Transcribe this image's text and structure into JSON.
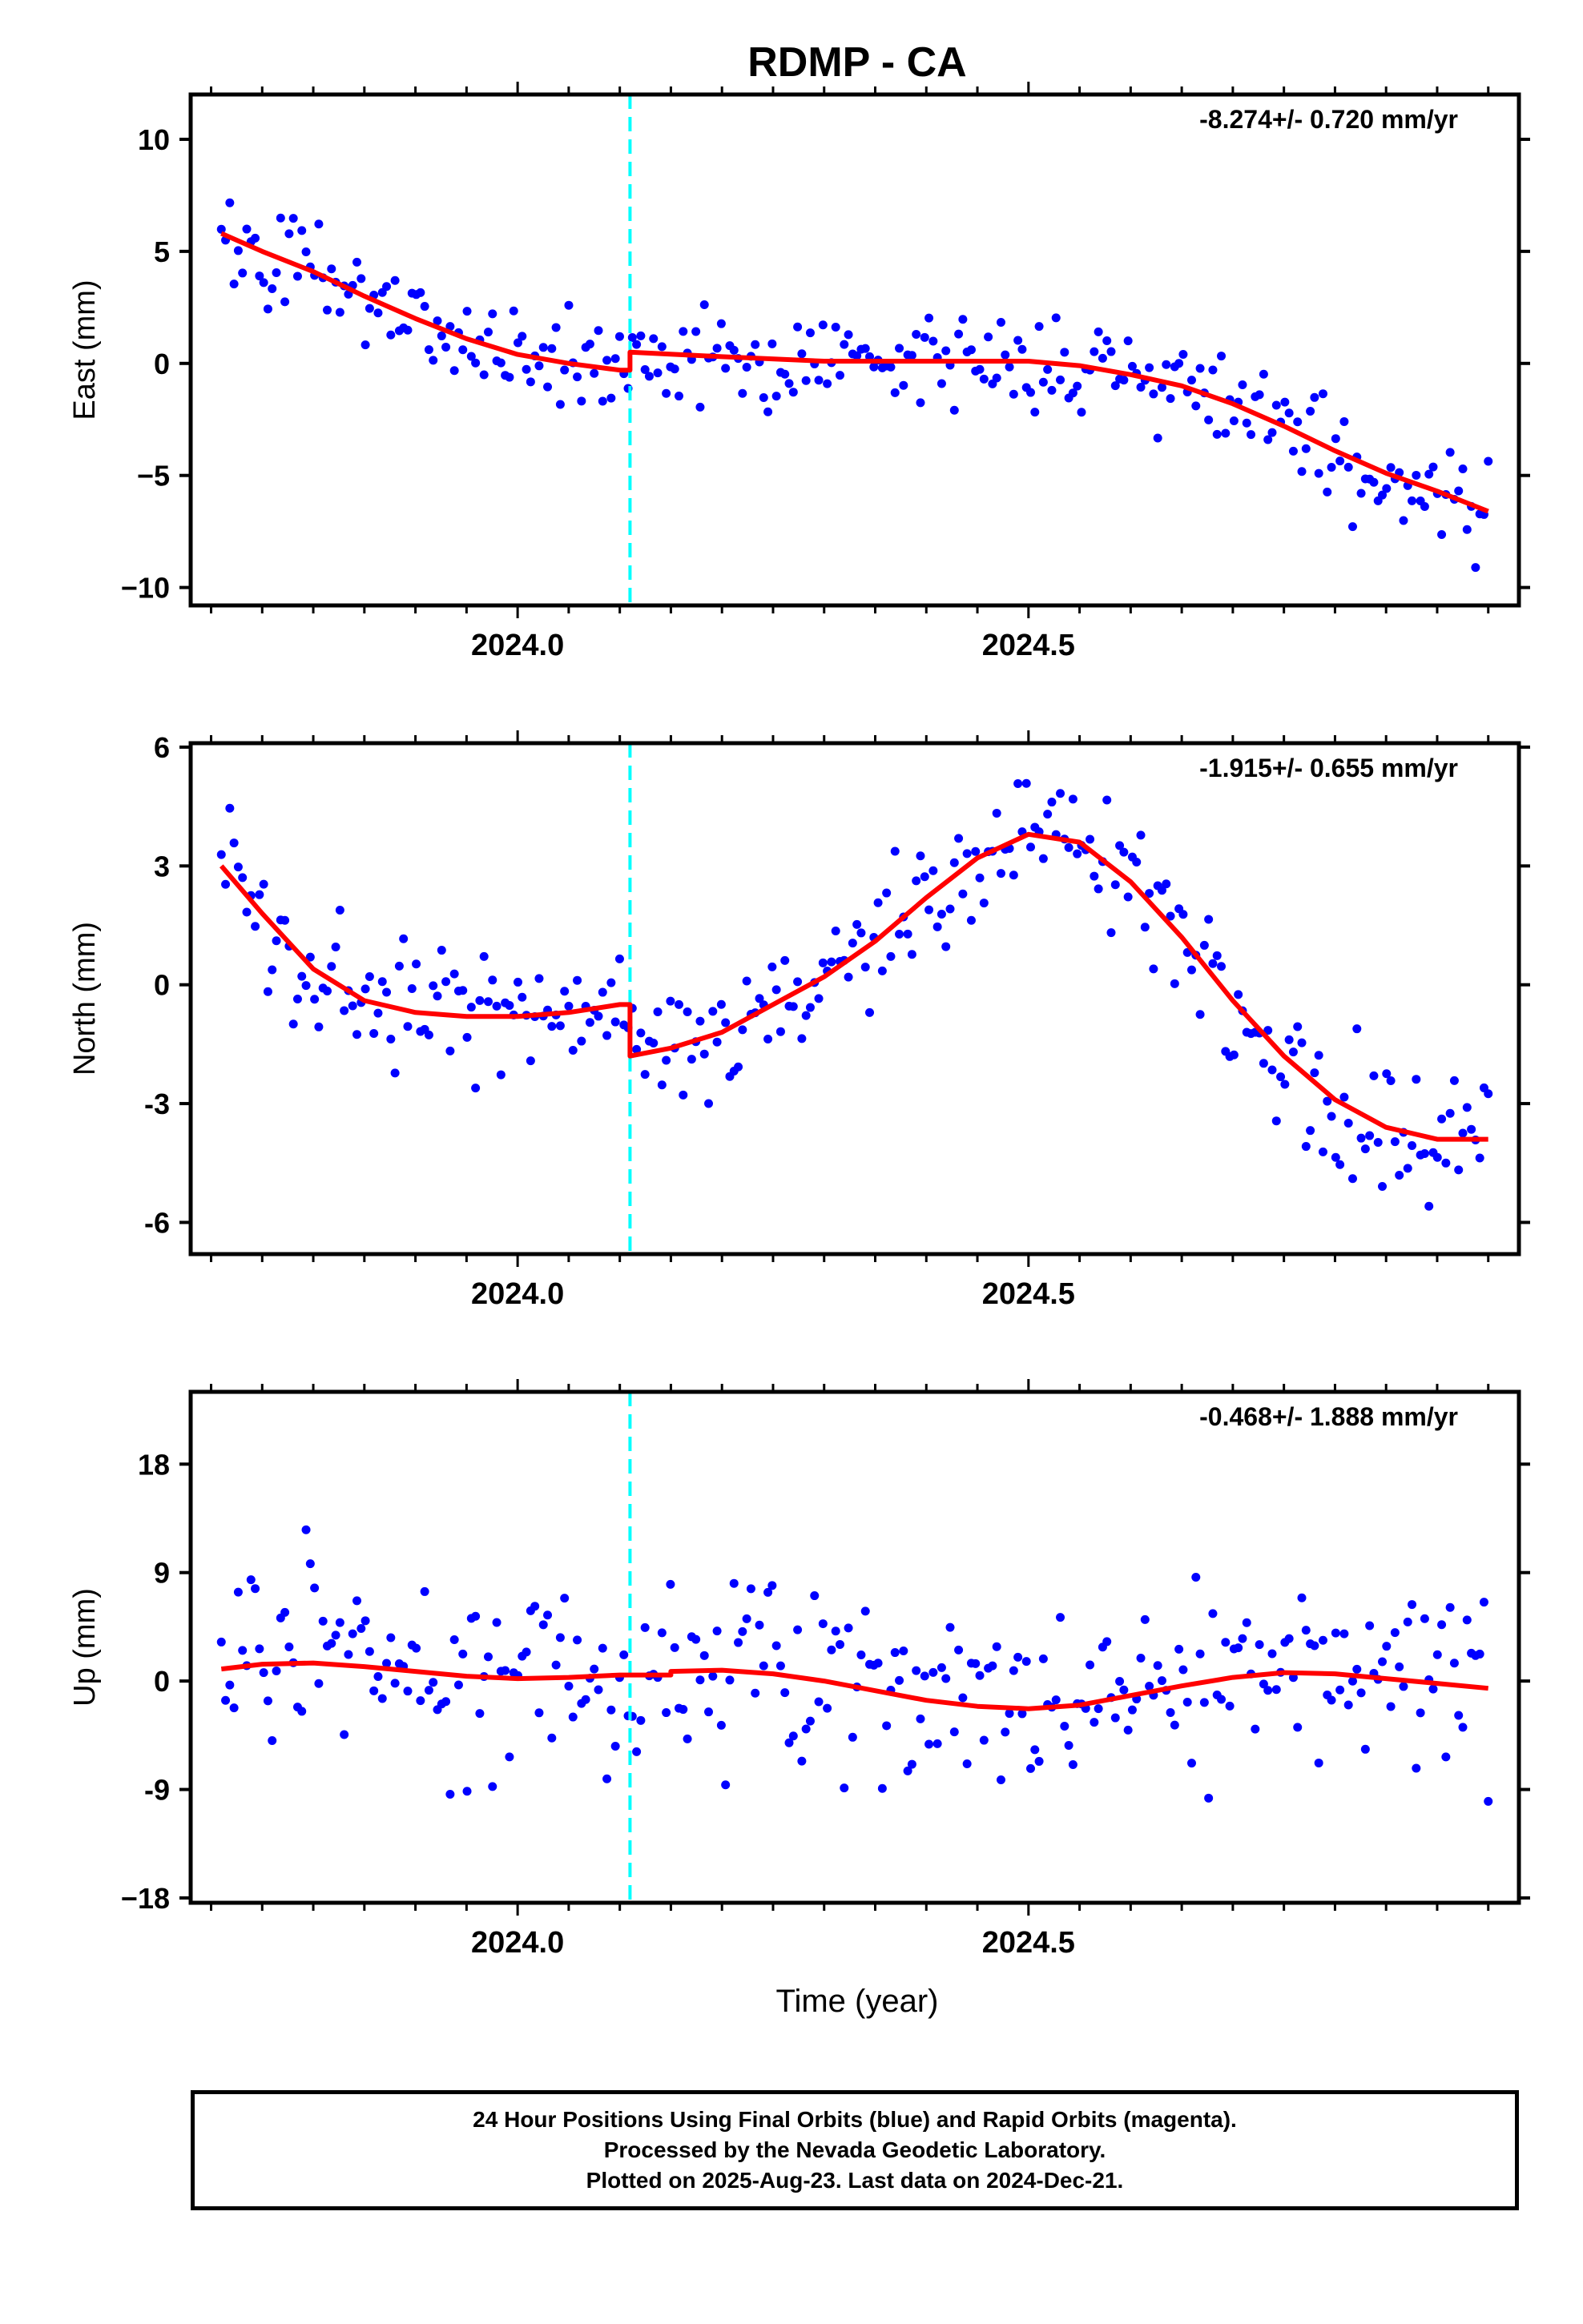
{
  "title": "RDMP - CA",
  "xlabel": "Time (year)",
  "offset_epoch": 2024.11,
  "colors": {
    "final_orbit_points": "#0000ff",
    "rapid_orbit_points": "#ff00ff",
    "model_fit": "#ff0000",
    "offset_marker": "#00ffff",
    "frame": "#000000"
  },
  "footer": {
    "line1": "24 Hour Positions Using Final Orbits (blue) and Rapid Orbits (magenta).",
    "line2": "Processed by the Nevada Geodetic Laboratory.",
    "line3": "Plotted on 2025-Aug-23. Last data on 2024-Dec-21."
  },
  "chart_data": [
    {
      "type": "scatter",
      "component": "East",
      "ylabel": "East (mm)",
      "rate_label": "-8.274+/- 0.720 mm/yr",
      "xlim": [
        2023.68,
        2024.98
      ],
      "ylim": [
        -10.8,
        12
      ],
      "yticks": [
        10,
        5,
        0,
        -5,
        -10
      ],
      "ytick_labels": [
        "10",
        "5",
        "0",
        "−5",
        "−10"
      ],
      "xticks": [
        2024.0,
        2024.5
      ],
      "xtick_labels": [
        "2024.0",
        "2024.5"
      ],
      "grid": false,
      "fit": [
        {
          "x": 2023.71,
          "y": 5.8
        },
        {
          "x": 2023.75,
          "y": 5.0
        },
        {
          "x": 2023.8,
          "y": 4.1
        },
        {
          "x": 2023.85,
          "y": 3.0
        },
        {
          "x": 2023.9,
          "y": 2.0
        },
        {
          "x": 2023.95,
          "y": 1.1
        },
        {
          "x": 2024.0,
          "y": 0.4
        },
        {
          "x": 2024.05,
          "y": 0.0
        },
        {
          "x": 2024.1,
          "y": -0.3
        },
        {
          "x": 2024.11,
          "y": 0.5
        },
        {
          "x": 2024.2,
          "y": 0.3
        },
        {
          "x": 2024.3,
          "y": 0.1
        },
        {
          "x": 2024.4,
          "y": 0.1
        },
        {
          "x": 2024.5,
          "y": 0.1
        },
        {
          "x": 2024.55,
          "y": -0.1
        },
        {
          "x": 2024.6,
          "y": -0.5
        },
        {
          "x": 2024.65,
          "y": -1.0
        },
        {
          "x": 2024.7,
          "y": -1.8
        },
        {
          "x": 2024.75,
          "y": -2.8
        },
        {
          "x": 2024.8,
          "y": -3.9
        },
        {
          "x": 2024.85,
          "y": -4.9
        },
        {
          "x": 2024.9,
          "y": -5.7
        },
        {
          "x": 2024.95,
          "y": -6.6
        }
      ]
    },
    {
      "type": "scatter",
      "component": "North",
      "ylabel": "North (mm)",
      "rate_label": "-1.915+/- 0.655 mm/yr",
      "xlim": [
        2023.68,
        2024.98
      ],
      "ylim": [
        -6.8,
        6.1
      ],
      "yticks": [
        6,
        3,
        0,
        -3,
        -6
      ],
      "ytick_labels": [
        "6",
        "3",
        "0",
        "-3",
        "-6"
      ],
      "xticks": [
        2024.0,
        2024.5
      ],
      "xtick_labels": [
        "2024.0",
        "2024.5"
      ],
      "grid": false,
      "fit": [
        {
          "x": 2023.71,
          "y": 3.0
        },
        {
          "x": 2023.75,
          "y": 1.8
        },
        {
          "x": 2023.8,
          "y": 0.4
        },
        {
          "x": 2023.85,
          "y": -0.4
        },
        {
          "x": 2023.9,
          "y": -0.7
        },
        {
          "x": 2023.95,
          "y": -0.8
        },
        {
          "x": 2024.0,
          "y": -0.8
        },
        {
          "x": 2024.05,
          "y": -0.7
        },
        {
          "x": 2024.1,
          "y": -0.5
        },
        {
          "x": 2024.11,
          "y": -1.8
        },
        {
          "x": 2024.15,
          "y": -1.6
        },
        {
          "x": 2024.2,
          "y": -1.2
        },
        {
          "x": 2024.25,
          "y": -0.5
        },
        {
          "x": 2024.3,
          "y": 0.2
        },
        {
          "x": 2024.35,
          "y": 1.1
        },
        {
          "x": 2024.4,
          "y": 2.2
        },
        {
          "x": 2024.45,
          "y": 3.2
        },
        {
          "x": 2024.5,
          "y": 3.8
        },
        {
          "x": 2024.55,
          "y": 3.6
        },
        {
          "x": 2024.6,
          "y": 2.6
        },
        {
          "x": 2024.65,
          "y": 1.2
        },
        {
          "x": 2024.7,
          "y": -0.4
        },
        {
          "x": 2024.75,
          "y": -1.8
        },
        {
          "x": 2024.8,
          "y": -2.9
        },
        {
          "x": 2024.85,
          "y": -3.6
        },
        {
          "x": 2024.9,
          "y": -3.9
        },
        {
          "x": 2024.95,
          "y": -3.9
        }
      ]
    },
    {
      "type": "scatter",
      "component": "Up",
      "ylabel": "Up (mm)",
      "rate_label": "-0.468+/- 1.888 mm/yr",
      "xlim": [
        2023.68,
        2024.98
      ],
      "ylim": [
        -18.4,
        24
      ],
      "yticks": [
        18,
        9,
        0,
        -9,
        -18
      ],
      "ytick_labels": [
        "18",
        "9",
        "0",
        "-9",
        "−18"
      ],
      "xticks": [
        2024.0,
        2024.5
      ],
      "xtick_labels": [
        "2024.0",
        "2024.5"
      ],
      "grid": false,
      "fit": [
        {
          "x": 2023.71,
          "y": 1.0
        },
        {
          "x": 2023.75,
          "y": 1.4
        },
        {
          "x": 2023.8,
          "y": 1.5
        },
        {
          "x": 2023.85,
          "y": 1.2
        },
        {
          "x": 2023.9,
          "y": 0.8
        },
        {
          "x": 2023.95,
          "y": 0.4
        },
        {
          "x": 2024.0,
          "y": 0.2
        },
        {
          "x": 2024.05,
          "y": 0.3
        },
        {
          "x": 2024.1,
          "y": 0.5
        },
        {
          "x": 2024.15,
          "y": 0.8
        },
        {
          "x": 2024.2,
          "y": 0.9
        },
        {
          "x": 2024.25,
          "y": 0.6
        },
        {
          "x": 2024.3,
          "y": 0.0
        },
        {
          "x": 2024.35,
          "y": -0.8
        },
        {
          "x": 2024.4,
          "y": -1.6
        },
        {
          "x": 2024.45,
          "y": -2.1
        },
        {
          "x": 2024.5,
          "y": -2.3
        },
        {
          "x": 2024.55,
          "y": -2.0
        },
        {
          "x": 2024.6,
          "y": -1.2
        },
        {
          "x": 2024.65,
          "y": -0.4
        },
        {
          "x": 2024.7,
          "y": 0.3
        },
        {
          "x": 2024.75,
          "y": 0.7
        },
        {
          "x": 2024.8,
          "y": 0.6
        },
        {
          "x": 2024.85,
          "y": 0.2
        },
        {
          "x": 2024.9,
          "y": -0.2
        },
        {
          "x": 2024.95,
          "y": -0.6
        }
      ]
    }
  ]
}
